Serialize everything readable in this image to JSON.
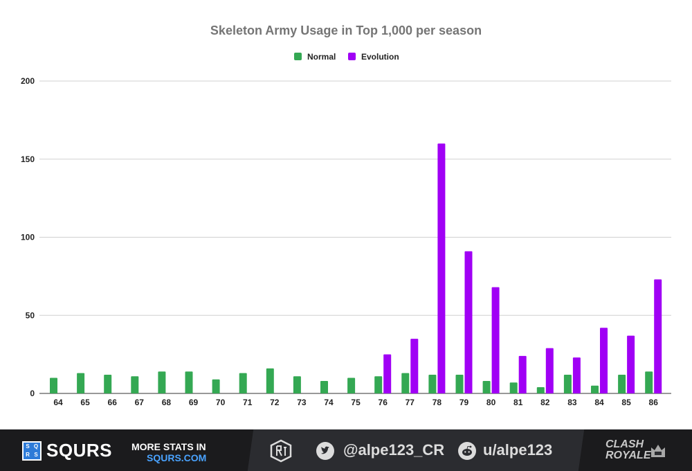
{
  "chart_data": {
    "type": "bar",
    "title": "Skeleton Army Usage in Top 1,000 per season",
    "categories": [
      "64",
      "65",
      "66",
      "67",
      "68",
      "69",
      "70",
      "71",
      "72",
      "73",
      "74",
      "75",
      "76",
      "77",
      "78",
      "79",
      "80",
      "81",
      "82",
      "83",
      "84",
      "85",
      "86"
    ],
    "series": [
      {
        "name": "Normal",
        "color": "#34a853",
        "values": [
          10,
          13,
          12,
          11,
          14,
          14,
          9,
          13,
          16,
          11,
          8,
          10,
          11,
          13,
          12,
          12,
          8,
          7,
          4,
          12,
          5,
          12,
          14
        ]
      },
      {
        "name": "Evolution",
        "color": "#a000f5",
        "values": [
          null,
          null,
          null,
          null,
          null,
          null,
          null,
          null,
          null,
          null,
          null,
          null,
          25,
          35,
          160,
          91,
          68,
          24,
          29,
          23,
          42,
          37,
          73
        ]
      }
    ],
    "ylim": [
      0,
      200
    ],
    "yticks": [
      0,
      50,
      100,
      150,
      200
    ],
    "xlabel": "",
    "ylabel": "",
    "grid": true,
    "legend_position": "top-center"
  },
  "footer": {
    "brand_logo_letters": [
      "S",
      "Q",
      "R",
      "S"
    ],
    "brand_name": "SQURS",
    "more_stats_line1": "MORE STATS IN",
    "more_stats_line2": "SQURS.COM",
    "twitter_handle": "@alpe123_CR",
    "reddit_handle": "u/alpe123",
    "game_logo_line1": "CLASH",
    "game_logo_line2": "ROYALE"
  }
}
